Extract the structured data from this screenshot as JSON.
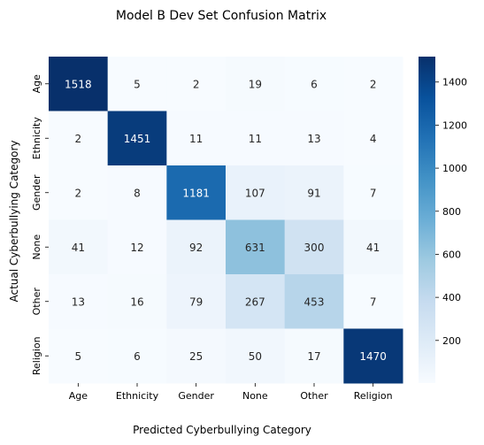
{
  "chart_data": {
    "type": "heatmap",
    "title": "Model B Dev Set Confusion Matrix",
    "xlabel": "Predicted Cyberbullying Category",
    "ylabel": "Actual Cyberbullying Category",
    "x_categories": [
      "Age",
      "Ethnicity",
      "Gender",
      "None",
      "Other",
      "Religion"
    ],
    "y_categories": [
      "Age",
      "Ethnicity",
      "Gender",
      "None",
      "Other",
      "Religion"
    ],
    "values": [
      [
        1518,
        5,
        2,
        19,
        6,
        2
      ],
      [
        2,
        1451,
        11,
        11,
        13,
        4
      ],
      [
        2,
        8,
        1181,
        107,
        91,
        7
      ],
      [
        41,
        12,
        92,
        631,
        300,
        41
      ],
      [
        13,
        16,
        79,
        267,
        453,
        7
      ],
      [
        5,
        6,
        25,
        50,
        17,
        1470
      ]
    ],
    "colormap": "Blues",
    "colorbar": {
      "range": [
        2,
        1518
      ],
      "ticks": [
        200,
        400,
        600,
        800,
        1000,
        1200,
        1400
      ]
    }
  }
}
